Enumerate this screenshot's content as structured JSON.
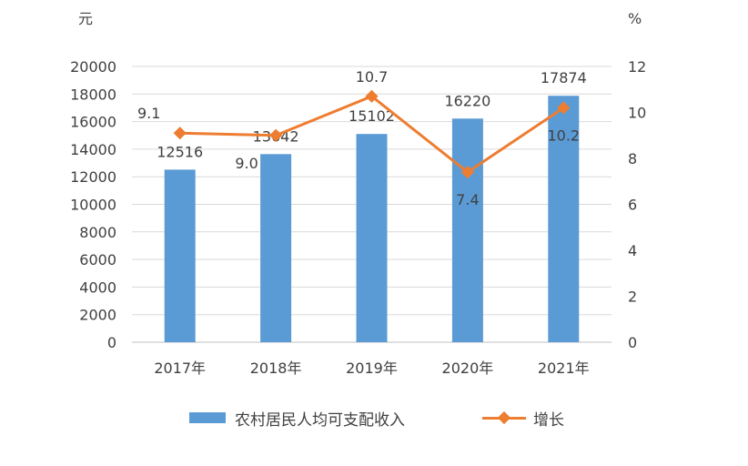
{
  "units": {
    "left": "元",
    "right": "%"
  },
  "legend": {
    "bar_label": "农村居民人均可支配收入",
    "line_label": "增长"
  },
  "colors": {
    "bar": "#5B9BD5",
    "line": "#ED7D31",
    "grid": "#D9D9D9",
    "axis": "#BFBFBF"
  },
  "chart_data": {
    "type": "bar",
    "categories": [
      "2017年",
      "2018年",
      "2019年",
      "2020年",
      "2021年"
    ],
    "series": [
      {
        "name": "农村居民人均可支配收入",
        "type": "bar",
        "axis": "left",
        "values": [
          12516,
          13642,
          15102,
          16220,
          17874
        ],
        "labels": [
          "12516",
          "13642",
          "15102",
          "16220",
          "17874"
        ]
      },
      {
        "name": "增长",
        "type": "line",
        "axis": "right",
        "values": [
          9.1,
          9.0,
          10.7,
          7.4,
          10.2
        ],
        "labels": [
          "9.1",
          "9.0",
          "10.7",
          "7.4",
          "10.2"
        ]
      }
    ],
    "y_left": {
      "min": 0,
      "max": 20000,
      "step": 2000,
      "ticks": [
        "0",
        "2000",
        "4000",
        "6000",
        "8000",
        "10000",
        "12000",
        "14000",
        "16000",
        "18000",
        "20000"
      ]
    },
    "y_right": {
      "min": 0,
      "max": 12,
      "step": 2,
      "ticks": [
        "0",
        "2",
        "4",
        "6",
        "8",
        "10",
        "12"
      ]
    },
    "grid": true,
    "legend_position": "bottom"
  }
}
